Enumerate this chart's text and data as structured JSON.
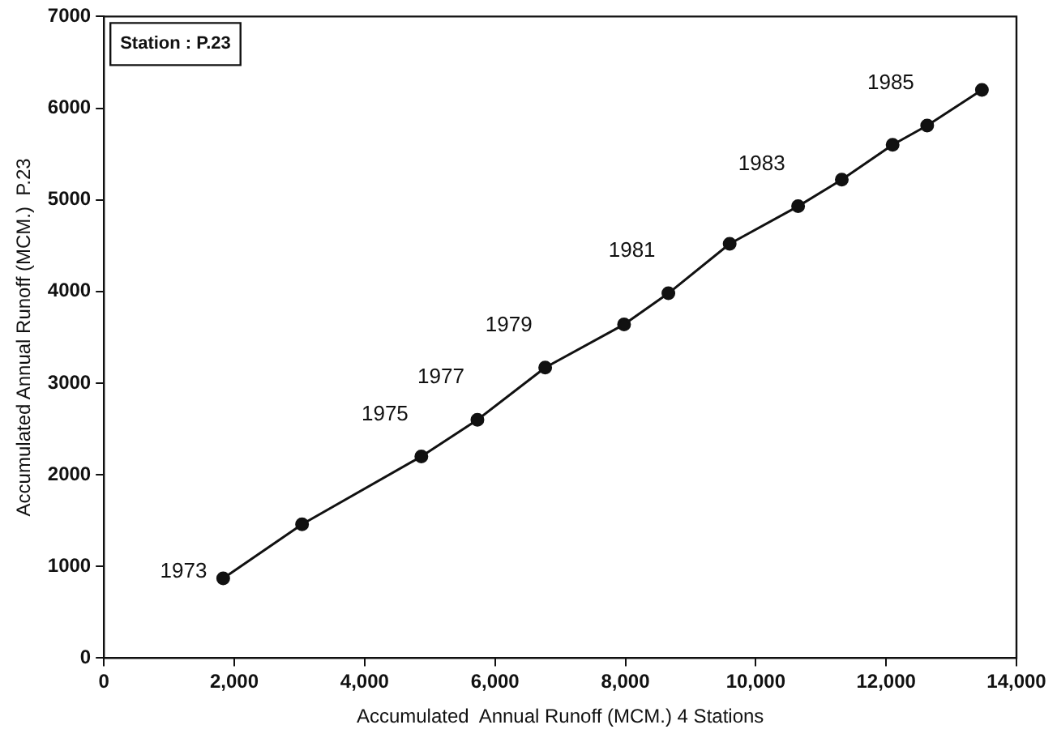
{
  "chart_data": {
    "type": "line",
    "xlabel": "Accumulated  Annual Runoff (MCM.) 4 Stations",
    "ylabel": "Accumulated Annual Runoff (MCM.)  P.23",
    "x": [
      1830,
      3040,
      4870,
      5730,
      6770,
      7980,
      8660,
      9600,
      10650,
      11320,
      12100,
      12630,
      13470
    ],
    "series": [
      {
        "color": "#111111",
        "values": [
          870,
          1460,
          2200,
          2600,
          3170,
          3640,
          3980,
          4520,
          4930,
          5220,
          5600,
          5810,
          6200
        ]
      }
    ],
    "xlim": [
      0,
      14000
    ],
    "xticks": [
      {
        "value": 0,
        "label": "0"
      },
      {
        "value": 2000,
        "label": "2,000"
      },
      {
        "value": 4000,
        "label": "4,000"
      },
      {
        "value": 6000,
        "label": "6,000"
      },
      {
        "value": 8000,
        "label": "8,000"
      },
      {
        "value": 10000,
        "label": "10,000"
      },
      {
        "value": 12000,
        "label": "12,000"
      },
      {
        "value": 14000,
        "label": "14,000"
      }
    ],
    "ylim": [
      0,
      7000
    ],
    "yticks": [
      0,
      1000,
      2000,
      3000,
      4000,
      5000,
      6000,
      7000
    ],
    "grid": false,
    "legend": false,
    "marker": "circle",
    "line_style": "solid",
    "annotations": [
      "Station : P.23",
      {
        "text": "1973",
        "x": 1830,
        "y": 870
      },
      {
        "text": "1975",
        "x": 4870,
        "y": 2200
      },
      {
        "text": "1977",
        "x": 5730,
        "y": 2600
      },
      {
        "text": "1979",
        "x": 6770,
        "y": 3170
      },
      {
        "text": "1981",
        "x": 8660,
        "y": 3980
      },
      {
        "text": "1983",
        "x": 10650,
        "y": 4930
      },
      {
        "text": "1985",
        "x": 12630,
        "y": 5810
      }
    ]
  }
}
